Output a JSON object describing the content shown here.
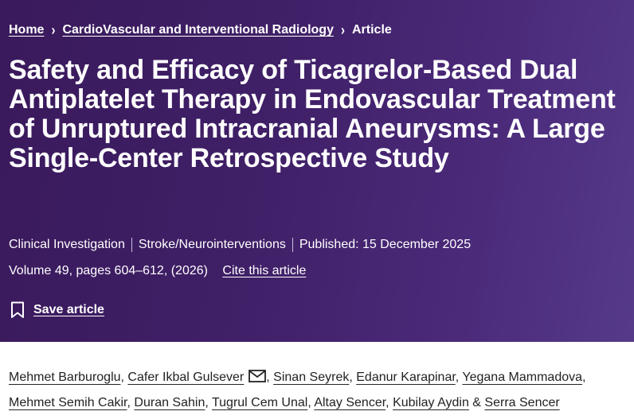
{
  "breadcrumb": {
    "home": "Home",
    "journal": "CardioVascular and Interventional Radiology",
    "current": "Article"
  },
  "article": {
    "title": "Safety and Efficacy of Ticagrelor-Based Dual Antiplatelet Therapy in Endovascular Treatment of Unruptured Intracranial Aneurysms: A Large Single-Center Retrospective Study",
    "type": "Clinical Investigation",
    "category": "Stroke/Neurointerventions",
    "published": "Published: 15 December 2025",
    "volume": "Volume 49, pages 604–612, (2026)",
    "cite_label": "Cite this article",
    "save_label": "Save article"
  },
  "authors": [
    "Mehmet Barburoglu",
    "Cafer Ikbal Gulsever",
    "Sinan Seyrek",
    "Edanur Karapinar",
    "Yegana Mammadova",
    "Mehmet Semih Cakir",
    "Duran Sahin",
    "Tugrul Cem Unal",
    "Altay Sencer",
    "Kubilay Aydin",
    "Serra Sencer"
  ],
  "author_separators": {
    "comma": ",",
    "ampersand": "&"
  },
  "icons": {
    "breadcrumb_separator": "chevron-right-icon",
    "save": "bookmark-icon",
    "contact": "mail-icon"
  },
  "colors": {
    "header_background": "#3f1f66",
    "header_text": "#ffffff",
    "body_text": "#222222"
  }
}
